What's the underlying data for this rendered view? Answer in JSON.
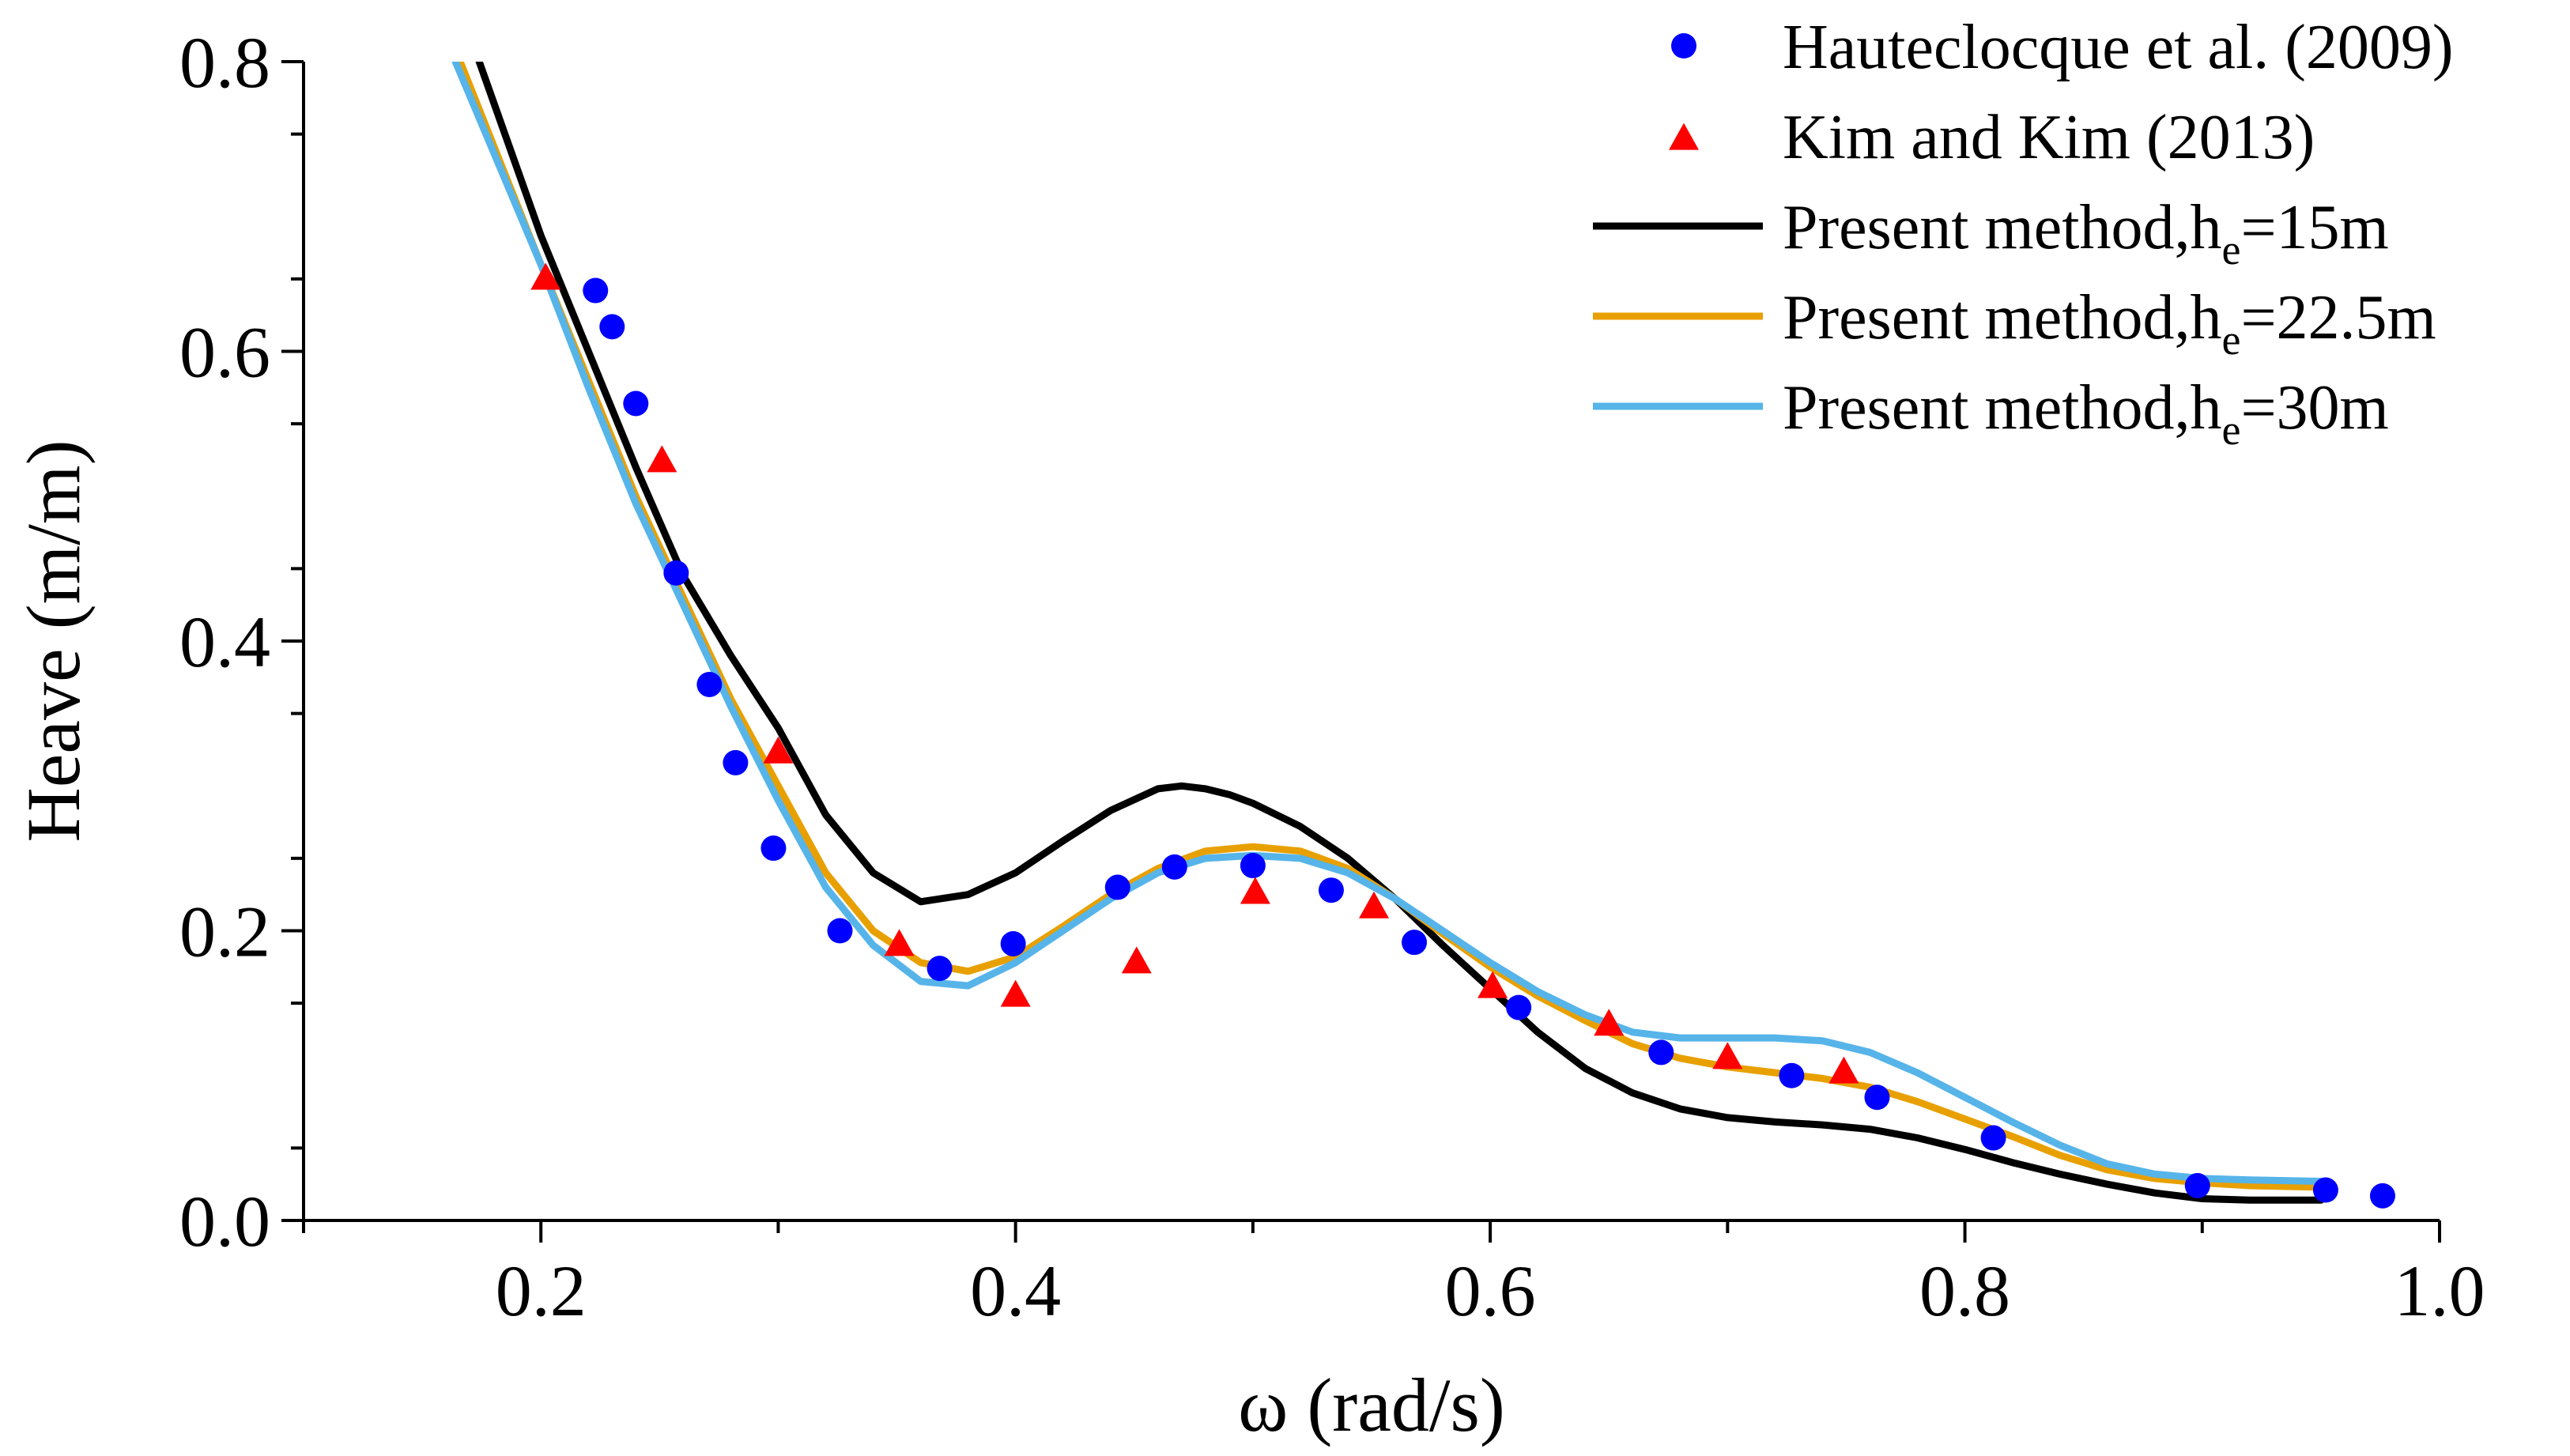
{
  "chart_data": {
    "type": "line",
    "title": "",
    "xlabel": "ω (rad/s)",
    "ylabel": "Heave (m/m)",
    "xlim": [
      0.1,
      1.0
    ],
    "ylim": [
      0.0,
      0.8
    ],
    "xticks": [
      0.2,
      0.4,
      0.6,
      0.8,
      1.0
    ],
    "xtick_labels": [
      "0.2",
      "0.4",
      "0.6",
      "0.8",
      "1.0"
    ],
    "yticks": [
      0.0,
      0.2,
      0.4,
      0.6,
      0.8
    ],
    "ytick_labels": [
      "0.0",
      "0.2",
      "0.4",
      "0.6",
      "0.8"
    ],
    "grid": false,
    "legend_position": "top-right",
    "scatter_series": [
      {
        "name": "Hauteclocque et al. (2009)",
        "marker": "circle",
        "color": "#0000ff",
        "x": [
          0.223,
          0.23,
          0.24,
          0.257,
          0.271,
          0.282,
          0.298,
          0.326,
          0.368,
          0.399,
          0.443,
          0.467,
          0.5,
          0.533,
          0.568,
          0.612,
          0.672,
          0.727,
          0.763,
          0.812,
          0.898,
          0.952,
          0.976
        ],
        "y": [
          0.642,
          0.617,
          0.564,
          0.447,
          0.37,
          0.316,
          0.257,
          0.2,
          0.174,
          0.191,
          0.23,
          0.244,
          0.245,
          0.228,
          0.192,
          0.147,
          0.116,
          0.1,
          0.085,
          0.057,
          0.024,
          0.021,
          0.017
        ]
      },
      {
        "name": "Kim and Kim (2013)",
        "marker": "triangle",
        "color": "#ff0000",
        "x": [
          0.202,
          0.251,
          0.3,
          0.351,
          0.4,
          0.451,
          0.501,
          0.551,
          0.601,
          0.65,
          0.7,
          0.749
        ],
        "y": [
          0.65,
          0.524,
          0.323,
          0.19,
          0.155,
          0.178,
          0.226,
          0.216,
          0.161,
          0.135,
          0.112,
          0.102
        ]
      }
    ],
    "line_series": [
      {
        "name": "Present method,h",
        "sub": "e",
        "suffix": "=15m",
        "color": "#000000",
        "x": [
          0.174,
          0.2,
          0.22,
          0.24,
          0.26,
          0.28,
          0.3,
          0.32,
          0.34,
          0.36,
          0.38,
          0.4,
          0.42,
          0.44,
          0.46,
          0.47,
          0.48,
          0.49,
          0.5,
          0.52,
          0.54,
          0.56,
          0.58,
          0.6,
          0.62,
          0.64,
          0.66,
          0.68,
          0.7,
          0.72,
          0.74,
          0.76,
          0.78,
          0.8,
          0.82,
          0.84,
          0.86,
          0.88,
          0.9,
          0.92,
          0.95
        ],
        "y": [
          0.8,
          0.68,
          0.6,
          0.52,
          0.445,
          0.39,
          0.34,
          0.28,
          0.24,
          0.22,
          0.225,
          0.24,
          0.262,
          0.283,
          0.298,
          0.3,
          0.298,
          0.294,
          0.288,
          0.272,
          0.25,
          0.222,
          0.19,
          0.16,
          0.13,
          0.105,
          0.088,
          0.077,
          0.071,
          0.068,
          0.066,
          0.063,
          0.057,
          0.049,
          0.04,
          0.032,
          0.025,
          0.019,
          0.015,
          0.014,
          0.014
        ]
      },
      {
        "name": "Present method,h",
        "sub": "e",
        "suffix": "=22.5m",
        "color": "#e8a000",
        "x": [
          0.166,
          0.2,
          0.22,
          0.24,
          0.26,
          0.28,
          0.3,
          0.32,
          0.34,
          0.36,
          0.38,
          0.4,
          0.42,
          0.44,
          0.46,
          0.48,
          0.5,
          0.52,
          0.54,
          0.56,
          0.58,
          0.6,
          0.62,
          0.64,
          0.66,
          0.68,
          0.7,
          0.72,
          0.74,
          0.76,
          0.78,
          0.8,
          0.82,
          0.84,
          0.86,
          0.88,
          0.9,
          0.92,
          0.95
        ],
        "y": [
          0.8,
          0.66,
          0.58,
          0.5,
          0.43,
          0.36,
          0.3,
          0.24,
          0.2,
          0.178,
          0.172,
          0.182,
          0.203,
          0.225,
          0.243,
          0.255,
          0.258,
          0.255,
          0.243,
          0.222,
          0.198,
          0.175,
          0.155,
          0.138,
          0.122,
          0.112,
          0.106,
          0.102,
          0.098,
          0.092,
          0.082,
          0.07,
          0.058,
          0.045,
          0.035,
          0.029,
          0.026,
          0.024,
          0.023
        ]
      },
      {
        "name": "Present method,h",
        "sub": "e",
        "suffix": "=30m",
        "color": "#56b4e9",
        "x": [
          0.164,
          0.2,
          0.22,
          0.24,
          0.26,
          0.28,
          0.3,
          0.32,
          0.34,
          0.36,
          0.38,
          0.4,
          0.42,
          0.44,
          0.46,
          0.48,
          0.5,
          0.52,
          0.54,
          0.56,
          0.58,
          0.6,
          0.62,
          0.64,
          0.66,
          0.68,
          0.7,
          0.72,
          0.74,
          0.76,
          0.78,
          0.8,
          0.82,
          0.84,
          0.86,
          0.88,
          0.9,
          0.92,
          0.95
        ],
        "y": [
          0.8,
          0.66,
          0.575,
          0.495,
          0.425,
          0.355,
          0.29,
          0.23,
          0.19,
          0.165,
          0.162,
          0.178,
          0.2,
          0.222,
          0.24,
          0.25,
          0.252,
          0.25,
          0.24,
          0.222,
          0.2,
          0.178,
          0.158,
          0.142,
          0.13,
          0.126,
          0.126,
          0.126,
          0.124,
          0.116,
          0.102,
          0.085,
          0.068,
          0.052,
          0.039,
          0.032,
          0.029,
          0.028,
          0.027
        ]
      }
    ]
  }
}
